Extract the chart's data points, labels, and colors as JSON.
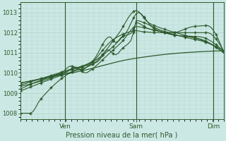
{
  "xlabel": "Pression niveau de la mer( hPa )",
  "bg_color": "#cce8e4",
  "plot_bg_color": "#cce8e4",
  "grid_color": "#b0d0cc",
  "line_color": "#2d5a2d",
  "ylim": [
    1007.7,
    1013.5
  ],
  "yticks": [
    1008,
    1009,
    1010,
    1011,
    1012,
    1013
  ],
  "xtick_labels": [
    "Ven",
    "Sam",
    "Dim"
  ],
  "xtick_positions": [
    0.22,
    0.57,
    0.95
  ],
  "vline_positions": [
    0.22,
    0.57,
    0.95
  ]
}
